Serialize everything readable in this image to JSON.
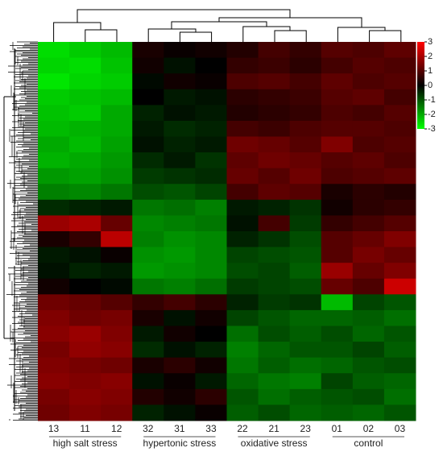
{
  "chart_data": {
    "type": "heatmap",
    "x": [
      "13",
      "11",
      "12",
      "32",
      "31",
      "33",
      "22",
      "21",
      "23",
      "01",
      "02",
      "03"
    ],
    "group_labels": [
      "high salt stress",
      "hypertonic stress",
      "oxidative stress",
      "control"
    ],
    "colorscale": [
      "#00ff00",
      "#000000",
      "#ff0000"
    ],
    "zlim": [
      -3,
      3
    ],
    "zticks": [
      3,
      2,
      1,
      0,
      -1,
      -2,
      -3
    ],
    "values": [
      [
        -2.6,
        -2.4,
        -2.2,
        0.3,
        0.1,
        0.2,
        0.4,
        0.8,
        0.6,
        1.0,
        0.9,
        1.1
      ],
      [
        -2.5,
        -2.6,
        -2.3,
        0.2,
        -0.2,
        0.0,
        0.6,
        0.7,
        0.5,
        0.8,
        1.0,
        0.9
      ],
      [
        -2.7,
        -2.5,
        -2.4,
        -0.1,
        0.2,
        0.1,
        0.9,
        1.0,
        0.8,
        1.1,
        0.9,
        1.0
      ],
      [
        -2.4,
        -2.3,
        -2.2,
        0.0,
        -0.3,
        -0.2,
        0.5,
        0.6,
        0.7,
        1.0,
        1.1,
        0.8
      ],
      [
        -2.3,
        -2.4,
        -2.0,
        -0.4,
        -0.2,
        -0.3,
        0.4,
        0.5,
        0.6,
        0.9,
        0.8,
        1.0
      ],
      [
        -2.2,
        -2.1,
        -2.0,
        -0.3,
        -0.5,
        -0.4,
        0.8,
        0.7,
        0.9,
        1.0,
        1.0,
        0.9
      ],
      [
        -2.0,
        -2.2,
        -1.9,
        -0.2,
        -0.4,
        -0.3,
        1.3,
        1.2,
        1.0,
        1.5,
        0.9,
        1.0
      ],
      [
        -2.1,
        -2.0,
        -1.8,
        -0.5,
        -0.3,
        -0.6,
        1.1,
        1.3,
        1.2,
        1.0,
        1.1,
        0.9
      ],
      [
        -1.8,
        -1.9,
        -1.7,
        -0.7,
        -0.6,
        -0.5,
        1.2,
        1.0,
        1.3,
        0.9,
        1.0,
        1.1
      ],
      [
        -1.5,
        -1.6,
        -1.4,
        -0.9,
        -1.0,
        -0.8,
        0.8,
        1.1,
        1.0,
        0.3,
        0.5,
        0.4
      ],
      [
        -0.5,
        -0.4,
        -0.3,
        -1.4,
        -1.3,
        -1.5,
        -0.3,
        -0.4,
        -0.6,
        0.2,
        0.5,
        0.6
      ],
      [
        1.8,
        2.0,
        1.2,
        -1.6,
        -1.5,
        -1.4,
        -0.2,
        0.8,
        -0.7,
        0.6,
        0.8,
        1.0
      ],
      [
        0.3,
        0.6,
        2.2,
        -1.5,
        -1.7,
        -1.6,
        -0.4,
        -0.6,
        -0.9,
        1.0,
        1.2,
        1.5
      ],
      [
        -0.3,
        -0.2,
        0.1,
        -1.7,
        -1.8,
        -1.6,
        -0.8,
        -0.9,
        -1.0,
        1.0,
        1.4,
        1.2
      ],
      [
        -0.2,
        -0.4,
        -0.3,
        -1.8,
        -1.7,
        -1.6,
        -0.9,
        -0.8,
        -1.1,
        1.8,
        1.2,
        1.5
      ],
      [
        0.2,
        0.0,
        -0.1,
        -1.4,
        -1.5,
        -1.3,
        -0.7,
        -0.8,
        -0.9,
        1.2,
        0.9,
        2.4
      ],
      [
        1.3,
        1.2,
        1.0,
        0.6,
        0.8,
        0.5,
        -0.4,
        -0.7,
        -0.6,
        -2.2,
        -0.8,
        -1.0
      ],
      [
        1.5,
        1.3,
        1.4,
        0.3,
        -0.2,
        0.2,
        -0.8,
        -1.0,
        -1.2,
        -1.2,
        -1.1,
        -1.3
      ],
      [
        1.6,
        1.8,
        1.5,
        -0.3,
        0.2,
        0.0,
        -1.3,
        -0.9,
        -1.1,
        -0.9,
        -1.2,
        -1.0
      ],
      [
        1.4,
        1.7,
        1.6,
        -0.5,
        -0.2,
        -0.4,
        -1.5,
        -1.2,
        -1.0,
        -1.0,
        -0.8,
        -1.1
      ],
      [
        1.5,
        1.4,
        1.3,
        0.3,
        0.5,
        0.2,
        -1.4,
        -1.1,
        -1.3,
        -1.2,
        -1.0,
        -0.9
      ],
      [
        1.6,
        1.5,
        1.6,
        -0.2,
        0.1,
        -0.3,
        -1.2,
        -1.4,
        -1.5,
        -0.8,
        -1.1,
        -1.2
      ],
      [
        1.4,
        1.6,
        1.5,
        0.4,
        0.2,
        0.5,
        -1.0,
        -1.3,
        -1.1,
        -1.0,
        -0.9,
        -1.3
      ],
      [
        1.3,
        1.5,
        1.4,
        -0.4,
        -0.2,
        0.1,
        -1.1,
        -0.9,
        -1.2,
        -1.1,
        -1.2,
        -1.0
      ]
    ]
  }
}
